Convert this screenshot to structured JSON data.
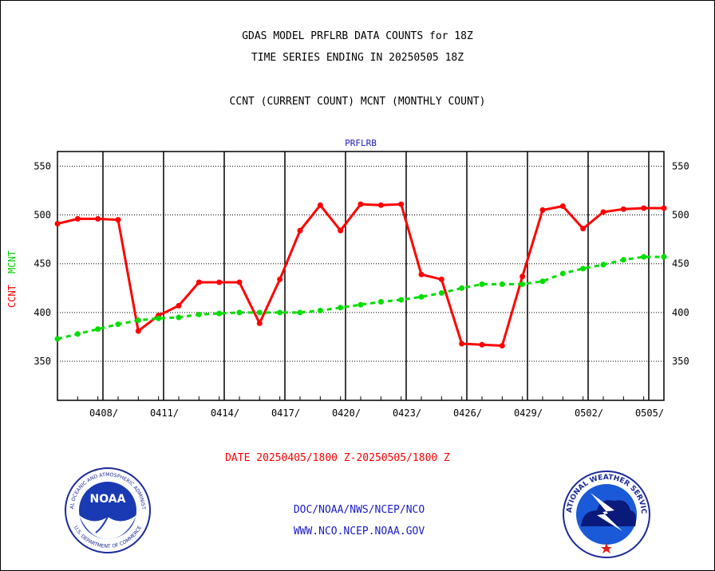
{
  "header": {
    "line1": "GDAS MODEL PRFLRB DATA COUNTS for 18Z",
    "line2": "TIME SERIES ENDING IN 20250505 18Z",
    "line3": "CCNT (CURRENT COUNT) MCNT (MONTHLY COUNT)"
  },
  "chart_data": {
    "type": "line",
    "title": "PRFLRB",
    "xlabel": "DATE 20250405/1800 Z-20250505/1800 Z",
    "ylabel_left": "CCNT",
    "ylabel_right": "MCNT",
    "ylim": [
      310,
      565
    ],
    "xlim": [
      0,
      30
    ],
    "yticks": [
      350,
      400,
      450,
      500,
      550
    ],
    "x_ticks": [
      {
        "x": 2.25,
        "label": "0408/"
      },
      {
        "x": 5.25,
        "label": "0411/"
      },
      {
        "x": 8.25,
        "label": "0414/"
      },
      {
        "x": 11.25,
        "label": "0417/"
      },
      {
        "x": 14.25,
        "label": "0420/"
      },
      {
        "x": 17.25,
        "label": "0423/"
      },
      {
        "x": 20.25,
        "label": "0426/"
      },
      {
        "x": 23.25,
        "label": "0429/"
      },
      {
        "x": 26.25,
        "label": "0502/"
      },
      {
        "x": 29.25,
        "label": "0505/"
      }
    ],
    "grid": true,
    "series": [
      {
        "name": "CCNT",
        "color": "#ff0000",
        "style": "solid",
        "x": [
          0,
          1,
          2,
          3,
          4,
          5,
          6,
          7,
          8,
          9,
          10,
          11,
          12,
          13,
          14,
          15,
          16,
          17,
          18,
          19,
          20,
          21,
          22,
          23,
          24,
          25,
          26,
          27,
          28,
          29,
          30
        ],
        "values": [
          491,
          496,
          496,
          495,
          381,
          397,
          407,
          431,
          431,
          431,
          389,
          434,
          484,
          510,
          484,
          511,
          510,
          511,
          439,
          434,
          368,
          367,
          366,
          437,
          505,
          509,
          486,
          503,
          506,
          507,
          507
        ]
      },
      {
        "name": "MCNT",
        "color": "#00dd00",
        "style": "dashed",
        "x": [
          0,
          1,
          2,
          3,
          4,
          5,
          6,
          7,
          8,
          9,
          10,
          11,
          12,
          13,
          14,
          15,
          16,
          17,
          18,
          19,
          20,
          21,
          22,
          23,
          24,
          25,
          26,
          27,
          28,
          29,
          30
        ],
        "values": [
          373,
          378,
          383,
          388,
          392,
          394,
          395,
          398,
          399,
          400,
          400,
          400,
          400,
          402,
          405,
          408,
          411,
          413,
          416,
          420,
          425,
          429,
          429,
          429,
          432,
          440,
          445,
          449,
          454,
          457,
          457
        ]
      }
    ]
  },
  "footer": {
    "line1": "DOC/NOAA/NWS/NCEP/NCO",
    "line2": "WWW.NCO.NCEP.NOAA.GOV"
  },
  "logos": {
    "noaa": {
      "ring_text": "NATIONAL OCEANIC AND ATMOSPHERIC ADMINISTRATION",
      "center_text": "NOAA",
      "bottom_text": "U.S. DEPARTMENT OF COMMERCE"
    },
    "nws": {
      "ring_text": "NATIONAL WEATHER SERVICE"
    }
  }
}
